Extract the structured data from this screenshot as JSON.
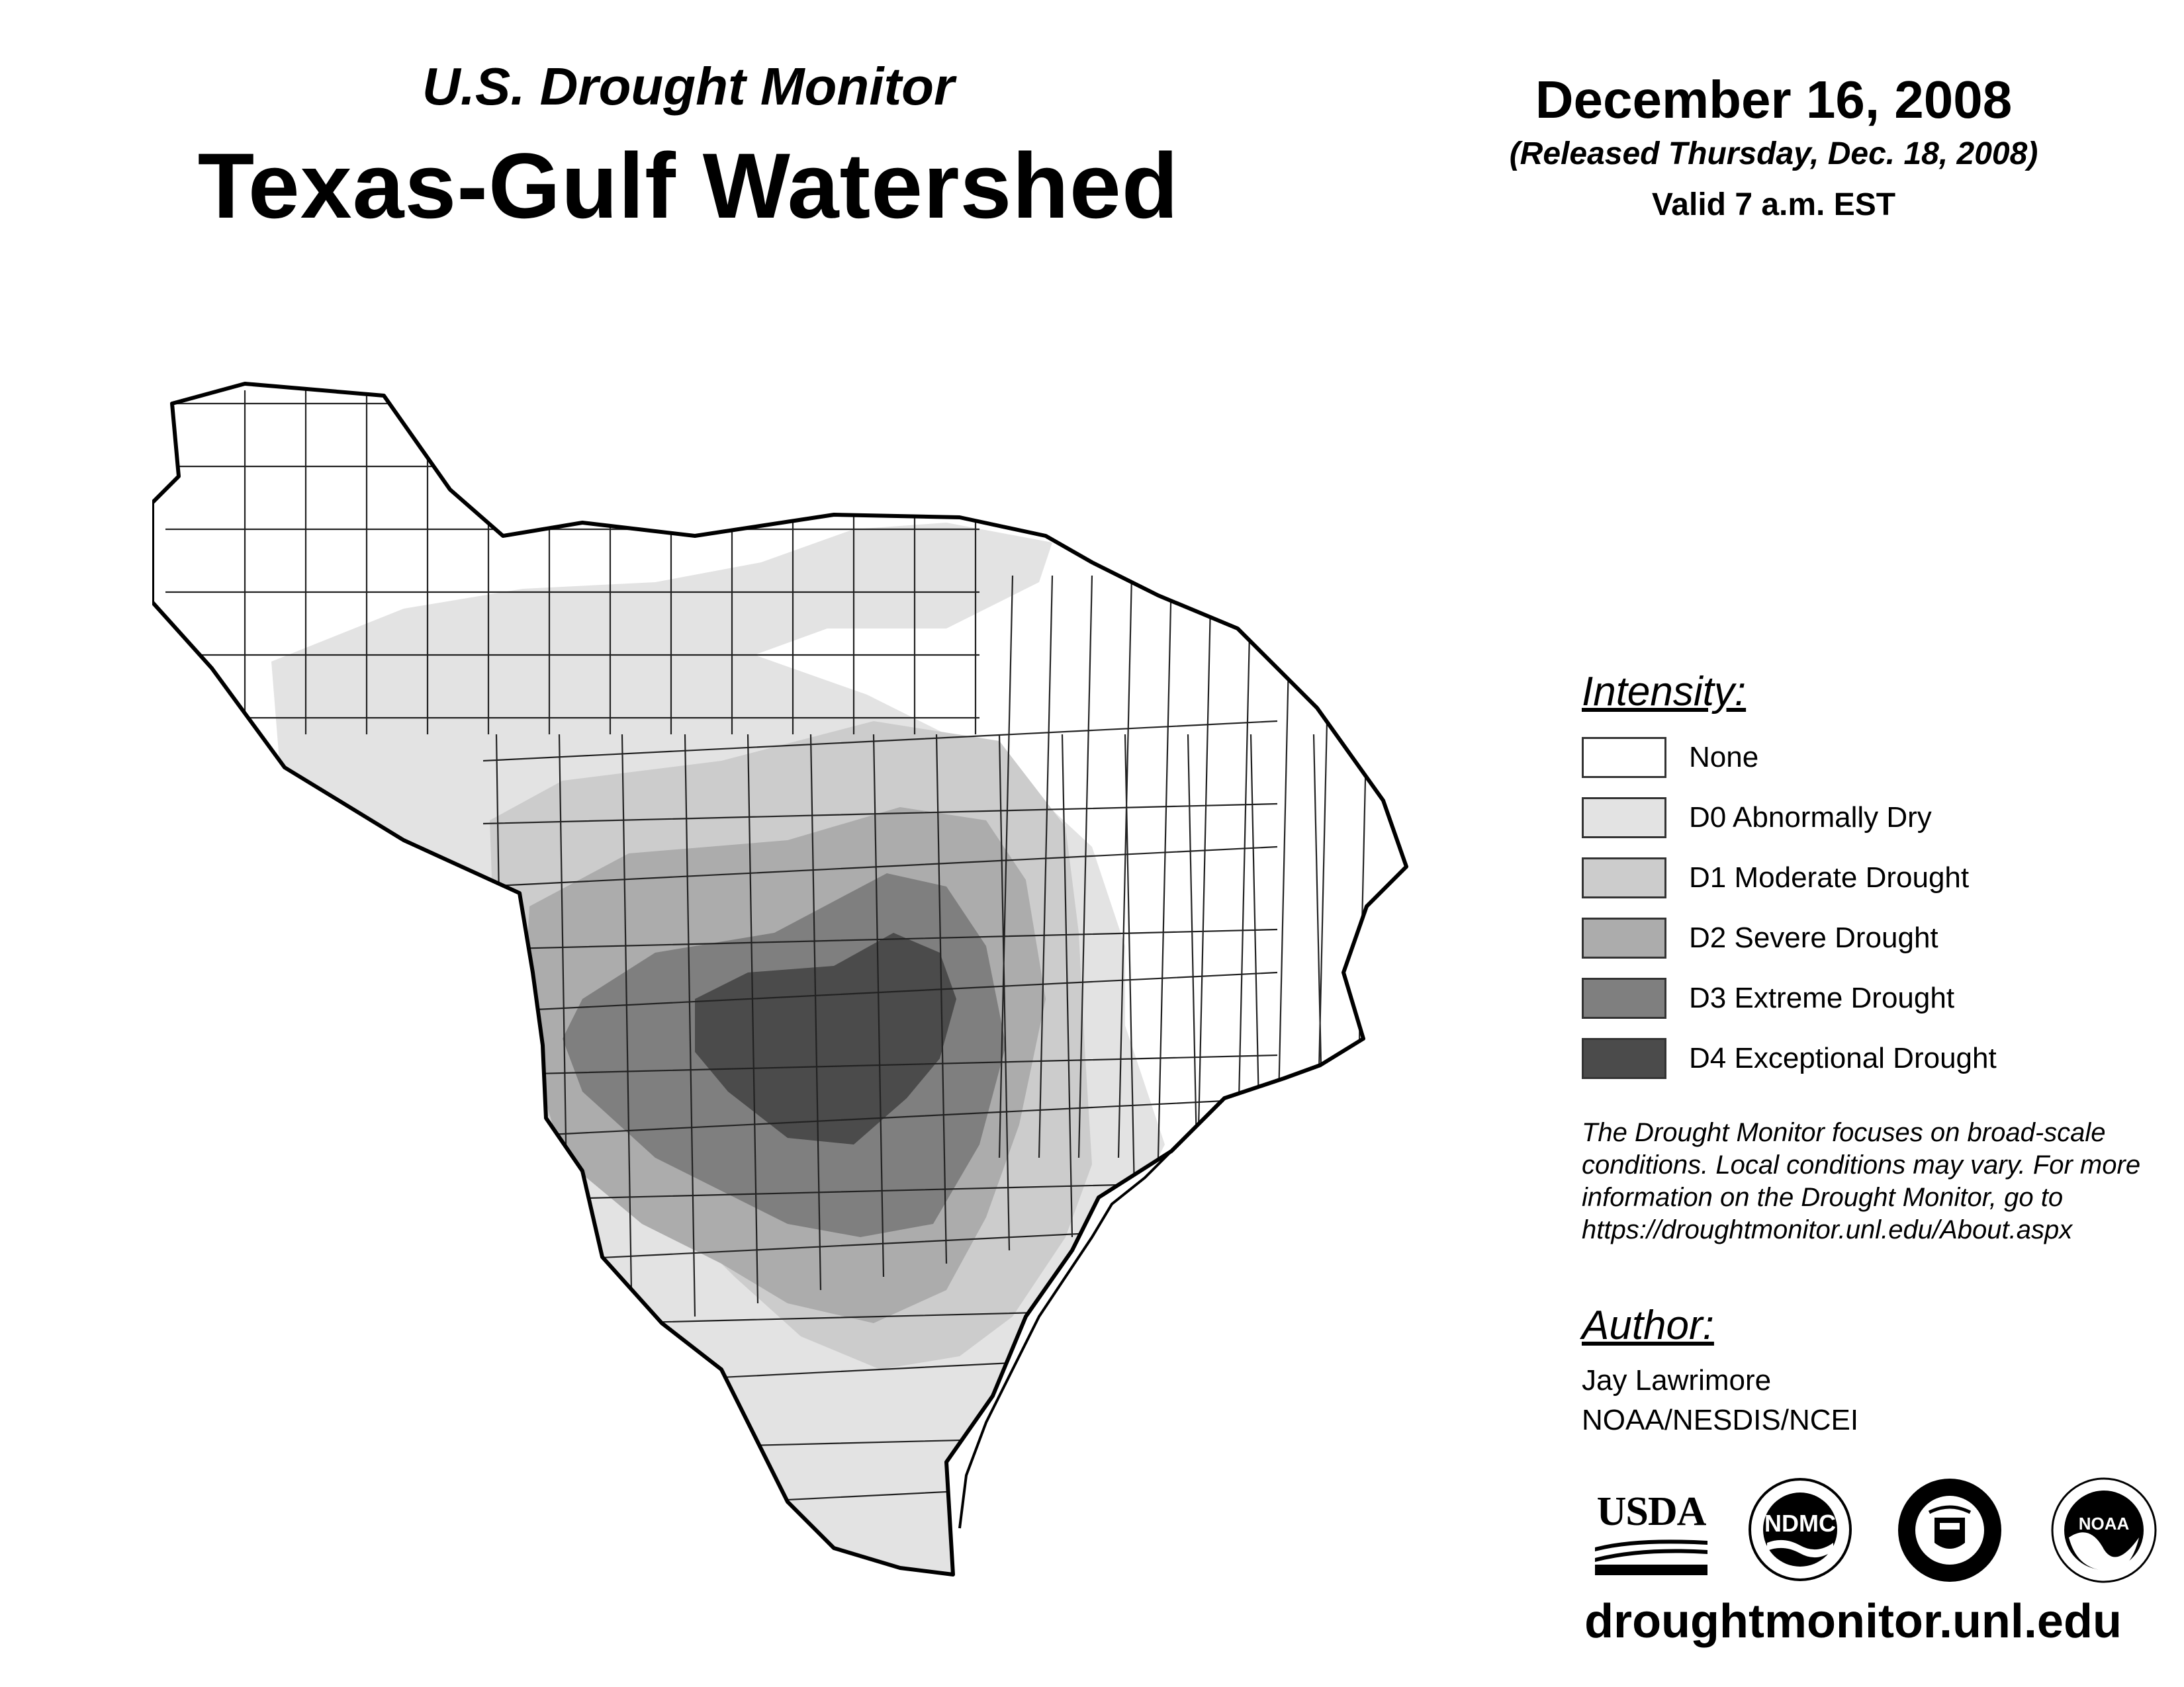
{
  "header": {
    "subtitle": "U.S. Drought Monitor",
    "title": "Texas-Gulf Watershed",
    "date": "December 16, 2008",
    "released": "(Released Thursday, Dec. 18, 2008)",
    "valid": "Valid 7 a.m. EST"
  },
  "legend": {
    "heading": "Intensity:",
    "items": [
      {
        "label": "None",
        "color": "#ffffff"
      },
      {
        "label": "D0 Abnormally Dry",
        "color": "#e3e3e3"
      },
      {
        "label": "D1 Moderate Drought",
        "color": "#cccccc"
      },
      {
        "label": "D2 Severe Drought",
        "color": "#acacac"
      },
      {
        "label": "D3 Extreme Drought",
        "color": "#7f7f7f"
      },
      {
        "label": "D4 Exceptional Drought",
        "color": "#4b4b4b"
      }
    ]
  },
  "note": {
    "line1": "The Drought Monitor focuses on broad-scale",
    "line2": "conditions. Local conditions may vary. For more",
    "line3": "information on the Drought Monitor, go to",
    "line4": "https://droughtmonitor.unl.edu/About.aspx"
  },
  "author": {
    "heading": "Author:",
    "name": "Jay Lawrimore",
    "org": "NOAA/NESDIS/NCEI"
  },
  "logos": {
    "usda": "USDA",
    "ndmc": "NDMC",
    "noaa": "NOAA"
  },
  "footer": {
    "url": "droughtmonitor.unl.edu"
  }
}
